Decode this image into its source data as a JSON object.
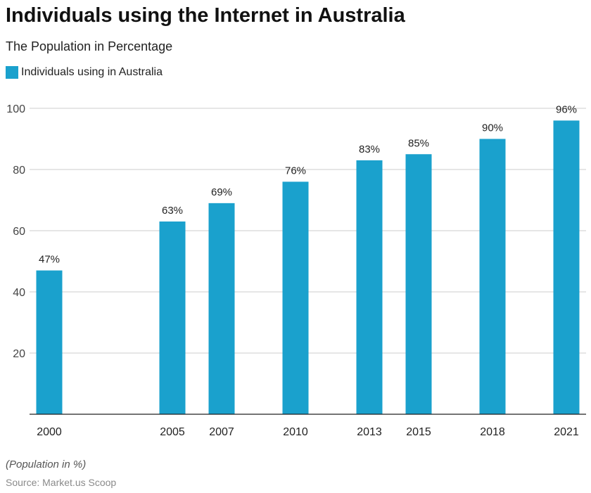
{
  "header": {
    "title": "Individuals using the Internet in Australia",
    "subtitle": "The Population in Percentage"
  },
  "legend": {
    "label": "Individuals using in Australia",
    "color": "#1aa1cd"
  },
  "footer": {
    "note": "(Population in %)",
    "source": "Source: Market.us Scoop"
  },
  "chart_data": {
    "type": "bar",
    "title": "Individuals using the Internet in Australia",
    "subtitle": "The Population in Percentage",
    "x_axis_type": "year",
    "categories": [
      "2000",
      "2005",
      "2007",
      "2010",
      "2013",
      "2015",
      "2018",
      "2021"
    ],
    "values": [
      47,
      63,
      69,
      76,
      83,
      85,
      90,
      96
    ],
    "data_labels": [
      "47%",
      "63%",
      "69%",
      "76%",
      "83%",
      "85%",
      "90%",
      "96%"
    ],
    "series": [
      {
        "name": "Individuals using in Australia",
        "values": [
          47,
          63,
          69,
          76,
          83,
          85,
          90,
          96
        ]
      }
    ],
    "y_ticks": [
      20,
      40,
      60,
      80,
      100
    ],
    "ylim": [
      0,
      100
    ],
    "xlim": [
      1999.2,
      2021.8
    ],
    "grid": true,
    "legend_position": "top-left",
    "bar_color": "#1aa1cd"
  }
}
